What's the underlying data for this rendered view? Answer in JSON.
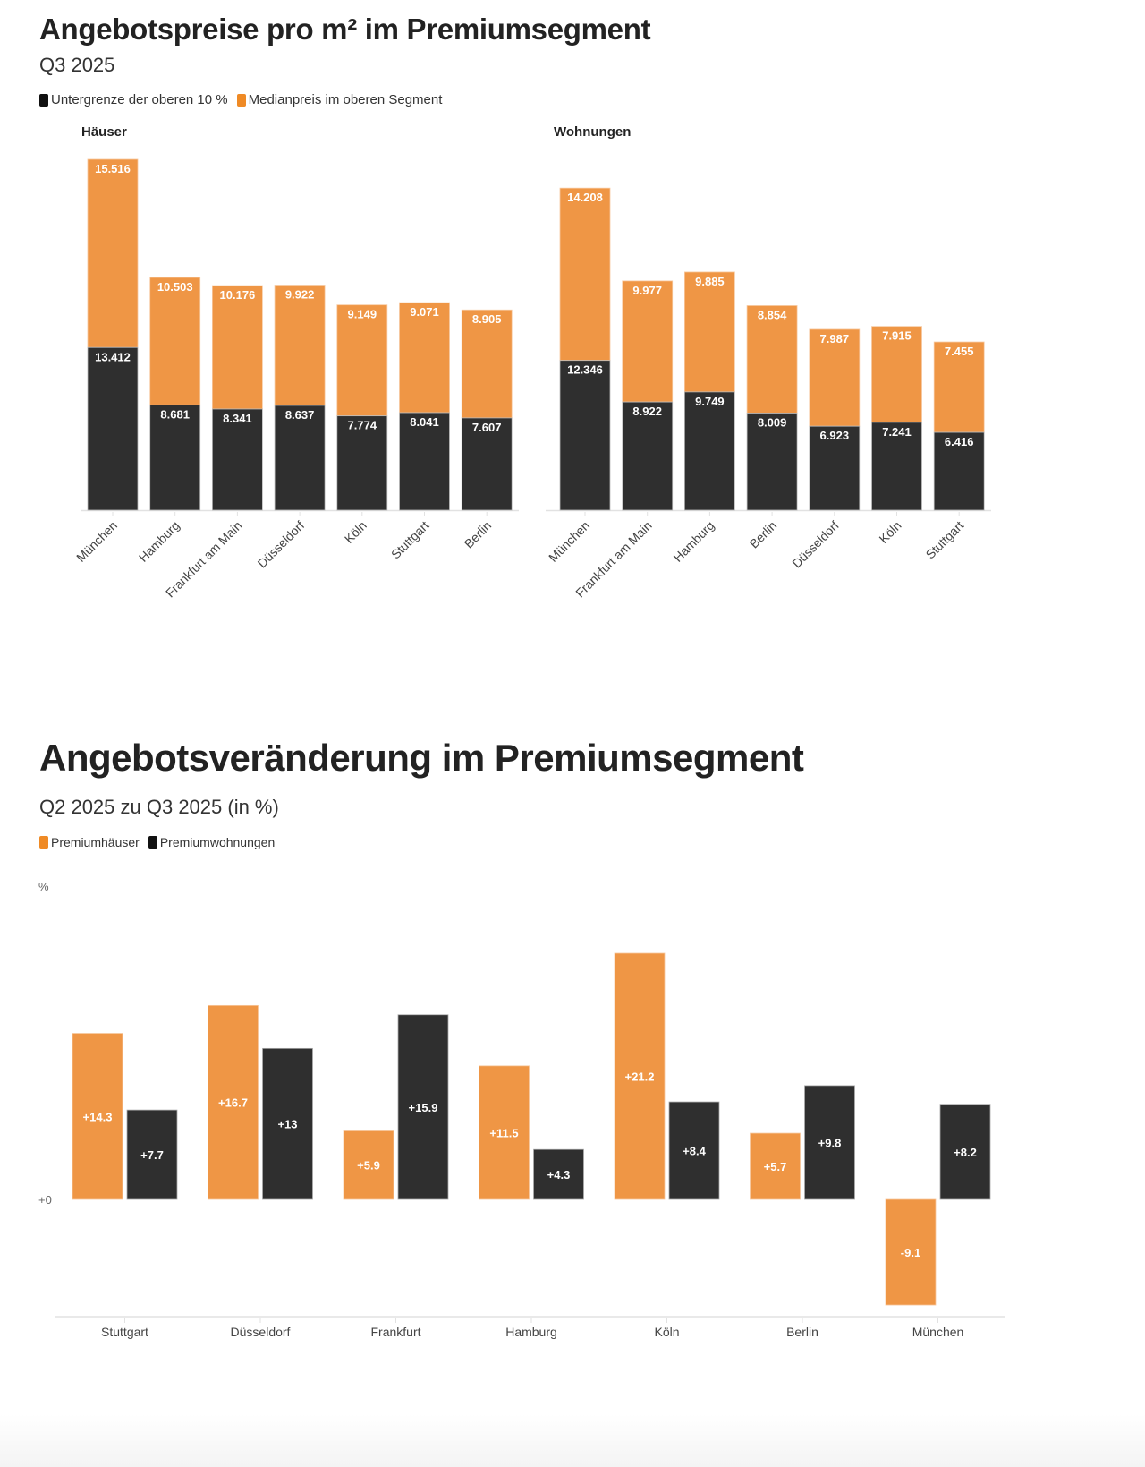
{
  "colors": {
    "orange": "#ef9645",
    "dark": "#2f2f2f",
    "axis": "#e2e2e2"
  },
  "chart_data": [
    {
      "type": "bar",
      "stacked": true,
      "title": "Angebotspreise pro m² im Premiumsegment",
      "subtitle": "Q3 2025",
      "legend": [
        "Untergrenze der oberen 10 %",
        "Medianpreis im oberen Segment"
      ],
      "legend_position": "top-left",
      "panels": [
        {
          "label": "Häuser",
          "categories": [
            "München",
            "Hamburg",
            "Frankfurt am Main",
            "Düsseldorf",
            "Köln",
            "Stuttgart",
            "Berlin"
          ],
          "series": [
            {
              "name": "Untergrenze der oberen 10 %",
              "values": [
                13412,
                8681,
                8341,
                8637,
                7774,
                8041,
                7607
              ],
              "labels": [
                "13.412",
                "8.681",
                "8.341",
                "8.637",
                "7.774",
                "8.041",
                "7.607"
              ]
            },
            {
              "name": "Medianpreis im oberen Segment",
              "values": [
                15516,
                10503,
                10176,
                9922,
                9149,
                9071,
                8905
              ],
              "labels": [
                "15.516",
                "10.503",
                "10.176",
                "9.922",
                "9.149",
                "9.071",
                "8.905"
              ]
            }
          ]
        },
        {
          "label": "Wohnungen",
          "categories": [
            "München",
            "Frankfurt am Main",
            "Hamburg",
            "Berlin",
            "Düsseldorf",
            "Köln",
            "Stuttgart"
          ],
          "series": [
            {
              "name": "Untergrenze der oberen 10 %",
              "values": [
                12346,
                8922,
                9749,
                8009,
                6923,
                7241,
                6416
              ],
              "labels": [
                "12.346",
                "8.922",
                "9.749",
                "8.009",
                "6.923",
                "7.241",
                "6.416"
              ]
            },
            {
              "name": "Medianpreis im oberen Segment",
              "values": [
                14208,
                9977,
                9885,
                8854,
                7987,
                7915,
                7455
              ],
              "labels": [
                "14.208",
                "9.977",
                "9.885",
                "8.854",
                "7.987",
                "7.915",
                "7.455"
              ]
            }
          ]
        }
      ],
      "xlabel": "",
      "ylabel": "",
      "grid": false
    },
    {
      "type": "bar",
      "title": "Angebotsveränderung im Premiumsegment",
      "subtitle": "Q2 2025 zu Q3 2025 (in %)",
      "legend": [
        "Premiumhäuser",
        "Premiumwohnungen"
      ],
      "legend_position": "top-left",
      "ylabel": "%",
      "zero_label": "+0",
      "ylim": [
        -10,
        25
      ],
      "categories": [
        "Stuttgart",
        "Düsseldorf",
        "Frankfurt",
        "Hamburg",
        "Köln",
        "Berlin",
        "München"
      ],
      "series": [
        {
          "name": "Premiumhäuser",
          "values": [
            14.3,
            16.7,
            5.9,
            11.5,
            21.2,
            5.7,
            -9.1
          ],
          "labels": [
            "+14.3",
            "+16.7",
            "+5.9",
            "+11.5",
            "+21.2",
            "+5.7",
            "-9.1"
          ]
        },
        {
          "name": "Premiumwohnungen",
          "values": [
            7.7,
            13,
            15.9,
            4.3,
            8.4,
            9.8,
            8.2
          ],
          "labels": [
            "+7.7",
            "+13",
            "+15.9",
            "+4.3",
            "+8.4",
            "+9.8",
            "+8.2"
          ]
        }
      ],
      "grid": false
    }
  ]
}
